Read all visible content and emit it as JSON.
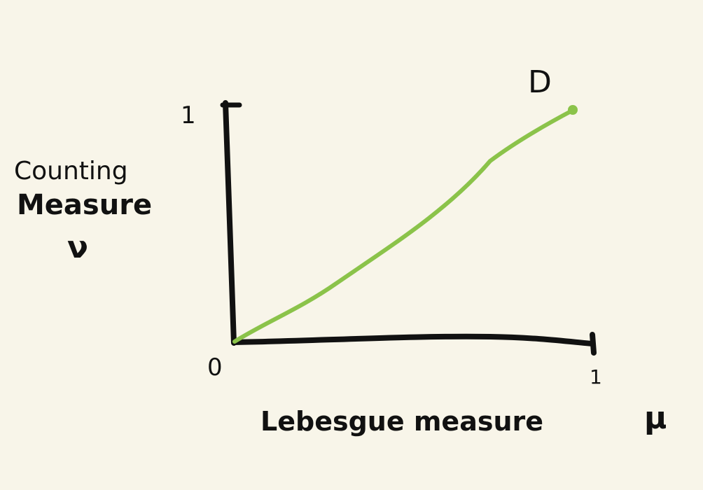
{
  "labels": {
    "y_axis_line1": "Counting",
    "y_axis_line2": "Measure",
    "y_axis_symbol": "ν",
    "x_axis": "Lebesgue measure",
    "x_axis_symbol": "μ",
    "origin": "0",
    "x_tick_max": "1",
    "y_tick_max": "1",
    "curve_label": "D"
  },
  "colors": {
    "background": "#f8f5e9",
    "ink": "#111111",
    "curve": "#8bc34a"
  }
}
